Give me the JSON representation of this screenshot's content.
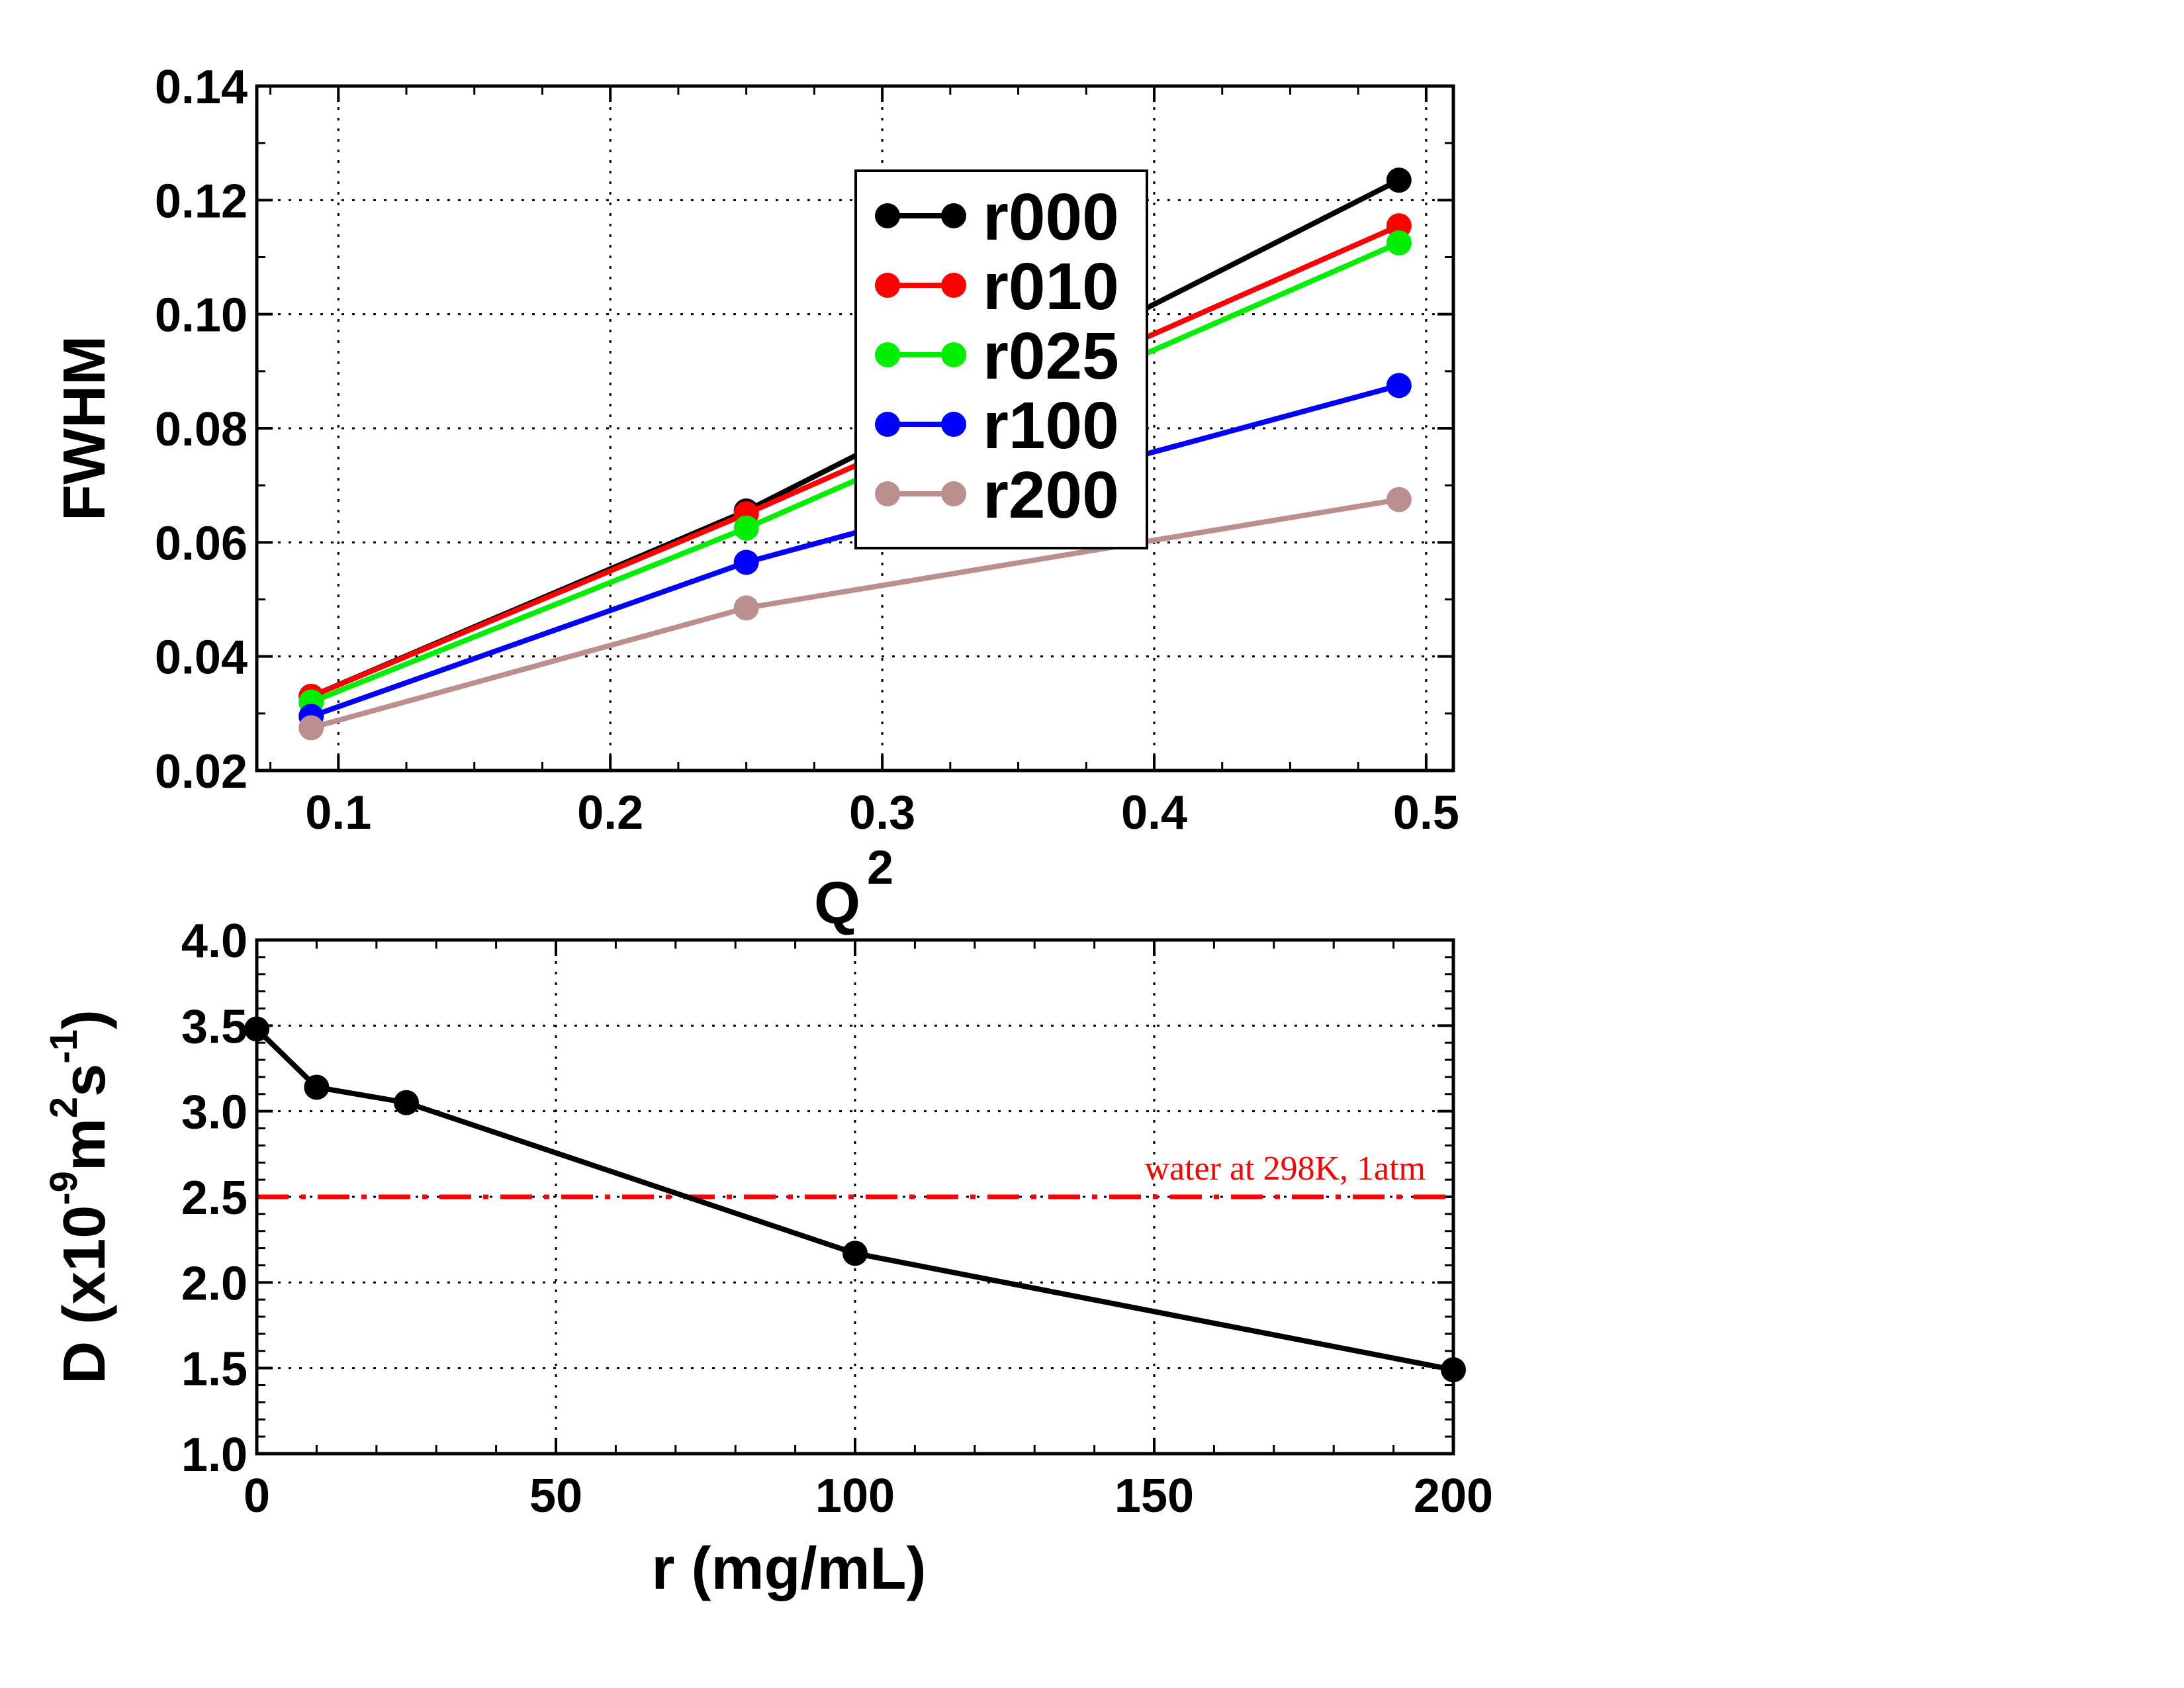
{
  "chart_data": [
    {
      "type": "line",
      "ylabel": "FWHM",
      "xlabel": "Q",
      "xlabel_sup": "2",
      "xlim": [
        0.07,
        0.51
      ],
      "ylim": [
        0.02,
        0.14
      ],
      "xticks": [
        0.1,
        0.2,
        0.3,
        0.4,
        0.5
      ],
      "yticks": [
        0.02,
        0.04,
        0.06,
        0.08,
        0.1,
        0.12,
        0.14
      ],
      "xtick_labels": [
        "0.1",
        "0.2",
        "0.3",
        "0.4",
        "0.5"
      ],
      "ytick_labels": [
        "0.02",
        "0.04",
        "0.06",
        "0.08",
        "0.10",
        "0.12",
        "0.14"
      ],
      "grid": true,
      "legend_position": "top-center",
      "x": [
        0.09,
        0.25,
        0.49
      ],
      "series": [
        {
          "name": "r000",
          "color": "#000000",
          "values": [
            0.033,
            0.0655,
            0.1235
          ]
        },
        {
          "name": "r010",
          "color": "#ff0000",
          "values": [
            0.033,
            0.065,
            0.1155
          ]
        },
        {
          "name": "r025",
          "color": "#00ee00",
          "values": [
            0.032,
            0.0625,
            0.1125
          ]
        },
        {
          "name": "r100",
          "color": "#0000ff",
          "values": [
            0.0295,
            0.0565,
            0.0875
          ]
        },
        {
          "name": "r200",
          "color": "#bc8f8f",
          "values": [
            0.0275,
            0.0485,
            0.0675
          ]
        }
      ]
    },
    {
      "type": "line",
      "xlabel": "r (mg/mL)",
      "ylabel": "D (x10-9m2s-1)",
      "ylabel_parts": [
        "D (x10",
        "-9",
        "m",
        "2",
        "s",
        "-1",
        ")"
      ],
      "xlim": [
        0,
        200
      ],
      "ylim": [
        1.0,
        4.0
      ],
      "xticks": [
        0,
        50,
        100,
        150,
        200
      ],
      "yticks": [
        1.0,
        1.5,
        2.0,
        2.5,
        3.0,
        3.5,
        4.0
      ],
      "xtick_labels": [
        "0",
        "50",
        "100",
        "150",
        "200"
      ],
      "ytick_labels": [
        "1.0",
        "1.5",
        "2.0",
        "2.5",
        "3.0",
        "3.5",
        "4.0"
      ],
      "grid": true,
      "x": [
        0,
        10,
        25,
        100,
        200
      ],
      "series": [
        {
          "color": "#000000",
          "values": [
            3.48,
            3.14,
            3.05,
            2.17,
            1.49
          ]
        }
      ],
      "reference_line": {
        "y": 2.5,
        "label": "water at 298K, 1atm",
        "color": "#ff0000",
        "style": "dash-dot"
      }
    }
  ]
}
